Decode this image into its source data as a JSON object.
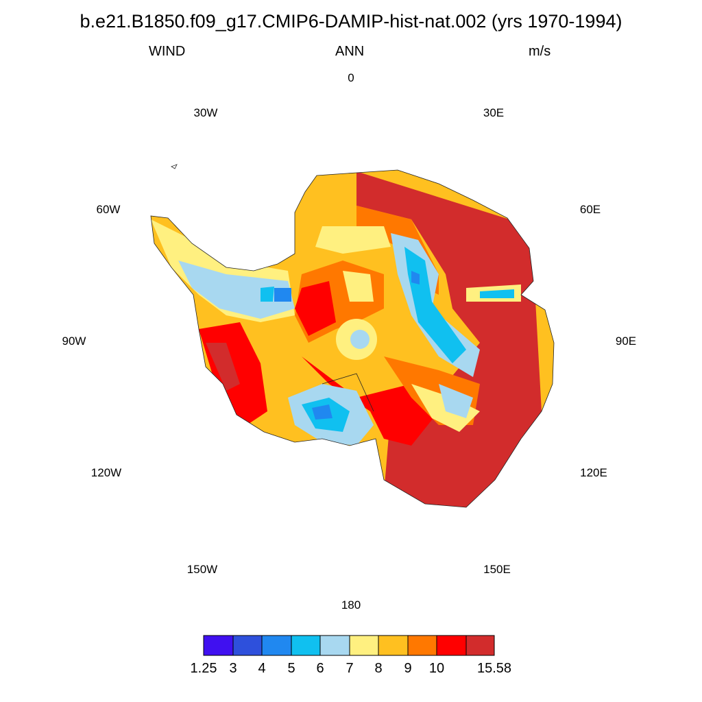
{
  "header": {
    "title": "b.e21.B1850.f09_g17.CMIP6-DAMIP-hist-nat.002 (yrs 1970-1994)",
    "left": "WIND",
    "center": "ANN",
    "right": "m/s"
  },
  "map": {
    "projection": "south-polar-stereographic",
    "variable": "WIND",
    "season": "ANN",
    "units": "m/s",
    "longitude_labels": [
      "0",
      "30E",
      "60E",
      "90E",
      "120E",
      "150E",
      "180",
      "150W",
      "120W",
      "90W",
      "60W",
      "30W"
    ],
    "palette": [
      "#4010f0",
      "#2e50dc",
      "#2088f0",
      "#10c0f0",
      "#a8d8f0",
      "#fff080",
      "#ffc020",
      "#ff7800",
      "#ff0000",
      "#d22c2c"
    ],
    "colorbar": {
      "labels": [
        "1.25",
        "3",
        "4",
        "5",
        "6",
        "7",
        "8",
        "9",
        "10",
        "15.58"
      ]
    }
  }
}
